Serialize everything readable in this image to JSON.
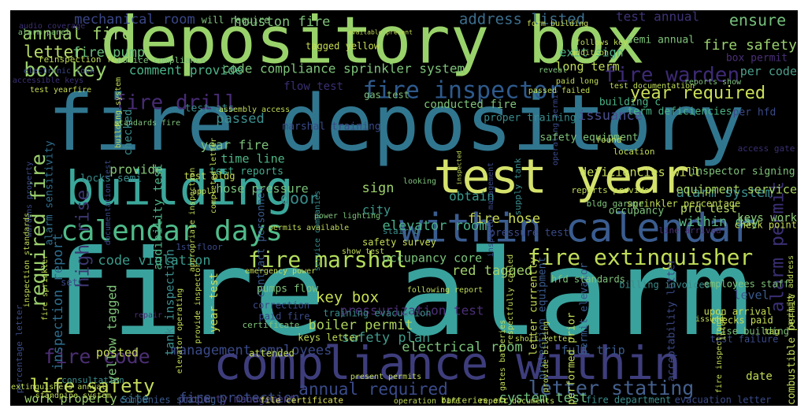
{
  "palette": {
    "background": "#000000",
    "viridis": [
      "#440154",
      "#482878",
      "#3e4a89",
      "#31688e",
      "#26828e",
      "#1f9e89",
      "#35b779",
      "#6ece58",
      "#b5de2b",
      "#fde725"
    ]
  },
  "words": [
    {
      "text": "fire alarm",
      "color": "#3aa29d"
    },
    {
      "text": "fire depository",
      "color": "#31768f"
    },
    {
      "text": "depository box",
      "color": "#99d26a"
    },
    {
      "text": "compliance within",
      "color": "#3e3d7c"
    },
    {
      "text": "building",
      "color": "#3ba79b"
    },
    {
      "text": "test year",
      "color": "#d5e26c"
    },
    {
      "text": "within calendar",
      "color": "#3a5c8f"
    },
    {
      "text": "calendar days",
      "color": "#4fbb8a"
    },
    {
      "text": "fire extinguisher",
      "color": "#c0dd58"
    },
    {
      "text": "fire inspector",
      "color": "#2e5a8d"
    },
    {
      "text": "fire marshal",
      "color": "#b3dd5a"
    },
    {
      "text": "fire warden",
      "color": "#3d2a75"
    },
    {
      "text": "year required",
      "color": "#ccdf5a"
    },
    {
      "text": "fire drill",
      "color": "#472b73"
    },
    {
      "text": "box key",
      "color": "#99d06d"
    },
    {
      "text": "annual fire",
      "color": "#9ccf6c"
    },
    {
      "text": "letter",
      "color": "#b7dc62"
    },
    {
      "text": "fire pump",
      "color": "#6ac07c"
    },
    {
      "text": "fire code",
      "color": "#4b2e73"
    },
    {
      "text": "life safety",
      "color": "#c4dc5b"
    },
    {
      "text": "annual required",
      "color": "#3a4b8a"
    },
    {
      "text": "letter stating",
      "color": "#44608d"
    },
    {
      "text": "fire safety",
      "color": "#99cf6d"
    },
    {
      "text": "alarm permit",
      "color": "#3a2f73"
    },
    {
      "text": "required fire",
      "color": "#9bd06c"
    },
    {
      "text": "high rise",
      "color": "#3b366f"
    },
    {
      "text": "ensure",
      "color": "#75c07c"
    },
    {
      "text": "address listed",
      "color": "#3b6f8e"
    },
    {
      "text": "mechanical room",
      "color": "#3a4787"
    },
    {
      "text": "houston fire",
      "color": "#7fc37a"
    },
    {
      "text": "test annual",
      "color": "#3e3378"
    },
    {
      "text": "code compliance sprinkler system",
      "color": "#7ec37a"
    },
    {
      "text": "comment provide",
      "color": "#4bb387"
    },
    {
      "text": "passed",
      "color": "#3b8f8e"
    },
    {
      "text": "issuance",
      "color": "#4a4f8d"
    },
    {
      "text": "year fire",
      "color": "#7ec07a"
    },
    {
      "text": "time line",
      "color": "#50b788"
    },
    {
      "text": "test reports",
      "color": "#44a88c"
    },
    {
      "text": "hose pressure",
      "color": "#7ac27c"
    },
    {
      "text": "door",
      "color": "#3a8c8c"
    },
    {
      "text": "sign",
      "color": "#9ed26a"
    },
    {
      "text": "provide",
      "color": "#86c777"
    },
    {
      "text": "city",
      "color": "#3d9a8b"
    },
    {
      "text": "elevator room",
      "color": "#4ab18a"
    },
    {
      "text": "fire hose",
      "color": "#ccdc52"
    },
    {
      "text": "alarm system",
      "color": "#3a8c8d"
    },
    {
      "text": "obtain",
      "color": "#3a9a8b"
    },
    {
      "text": "within day",
      "color": "#5cb984"
    },
    {
      "text": "code violation",
      "color": "#3a9a8b"
    },
    {
      "text": "inspection report",
      "color": "#2d6d8e"
    },
    {
      "text": "occupancy core",
      "color": "#7bc27c"
    },
    {
      "text": "red tagged",
      "color": "#a0d06a"
    },
    {
      "text": "key box",
      "color": "#c8de52"
    },
    {
      "text": "pressurization test",
      "color": "#4b2f78"
    },
    {
      "text": "boiler permit",
      "color": "#aed55d"
    },
    {
      "text": "safety plan",
      "color": "#3f9a8b"
    },
    {
      "text": "electrical room",
      "color": "#7bc37b"
    },
    {
      "text": "management employees",
      "color": "#3a4a88"
    },
    {
      "text": "fire protection",
      "color": "#3a4d8a"
    },
    {
      "text": "system test",
      "color": "#6ebf7e"
    },
    {
      "text": "work properly",
      "color": "#9cd06b"
    },
    {
      "text": "property management",
      "color": "#4a3f84"
    },
    {
      "text": "full trip",
      "color": "#3a5a8c"
    },
    {
      "text": "posted",
      "color": "#c8de54"
    },
    {
      "text": "level",
      "color": "#3a5a8c"
    },
    {
      "text": "keys work",
      "color": "#8cca74"
    },
    {
      "text": "equipment service",
      "color": "#a9d560"
    },
    {
      "text": "prd test",
      "color": "#b5d862"
    },
    {
      "text": "deficiencies will",
      "color": "#c7de5a"
    },
    {
      "text": "per code",
      "color": "#4c9f8b"
    },
    {
      "text": "long term",
      "color": "#c0dc56"
    },
    {
      "text": "exit sign",
      "color": "#4fb387"
    },
    {
      "text": "box permit",
      "color": "#4a2f78"
    },
    {
      "text": "semi annual",
      "color": "#7fc37a"
    },
    {
      "text": "will require",
      "color": "#7fc37a"
    },
    {
      "text": "form building",
      "color": "#ccdf5a"
    },
    {
      "text": "fire department",
      "color": "#3a8c8c"
    },
    {
      "text": "evacuation letter",
      "color": "#3a4a88"
    },
    {
      "text": "batteries etc",
      "color": "#c0dc56"
    },
    {
      "text": "file certificate",
      "color": "#e0e35a"
    },
    {
      "text": "companies stating",
      "color": "#3a5a8c"
    },
    {
      "text": "site",
      "color": "#3a7a8d"
    },
    {
      "text": "operating permit",
      "color": "#3a4a88"
    },
    {
      "text": "date",
      "color": "#c0dc56"
    },
    {
      "text": "alarm sensitivity",
      "color": "#2d6d8e"
    },
    {
      "text": "audibility test",
      "color": "#4bb387"
    },
    {
      "text": "yellow tagged",
      "color": "#7fc37a"
    },
    {
      "text": "tank inspection",
      "color": "#3a8c8c"
    },
    {
      "text": "checked",
      "color": "#3a8c8c"
    },
    {
      "text": "contract personnel",
      "color": "#3a5a8c"
    },
    {
      "text": "pumps flow",
      "color": "#7fc37a"
    },
    {
      "text": "year test",
      "color": "#c8de52"
    },
    {
      "text": "conducted fire",
      "color": "#7fc37a"
    },
    {
      "text": "proper training",
      "color": "#3a8c8c"
    },
    {
      "text": "term deficiencies",
      "color": "#4bb387"
    },
    {
      "text": "per hfd",
      "color": "#3a4a88"
    },
    {
      "text": "flow test",
      "color": "#3a2f73"
    },
    {
      "text": "gas test",
      "color": "#7fc37a"
    },
    {
      "text": "marshal training",
      "color": "#3a4a88"
    },
    {
      "text": "test ats",
      "color": "#3a8c8c"
    },
    {
      "text": "building c",
      "color": "#4bb387"
    },
    {
      "text": "safety equipment",
      "color": "#7fc37a"
    },
    {
      "text": "inspector signing",
      "color": "#7fc37a"
    },
    {
      "text": "access gate",
      "color": "#3a2f73"
    },
    {
      "text": "sprinkler percentage",
      "color": "#c0dc56"
    },
    {
      "text": "occupancy",
      "color": "#7fc37a"
    },
    {
      "text": "check point",
      "color": "#c8de52"
    },
    {
      "text": "line arrived",
      "color": "#4a2f78"
    },
    {
      "text": "pressure test",
      "color": "#3a4a88"
    },
    {
      "text": "stair b",
      "color": "#3a8c8c"
    },
    {
      "text": "safety survey",
      "color": "#c8de52"
    },
    {
      "text": "letter currently",
      "color": "#c8de52"
    },
    {
      "text": "protection equipment",
      "color": "#3a5a8c"
    },
    {
      "text": "permit elevator",
      "color": "#3a5a8c"
    },
    {
      "text": "performed prior",
      "color": "#c0dc56"
    },
    {
      "text": "acceptability letter",
      "color": "#3a4a88"
    },
    {
      "text": "combustible permit",
      "color": "#c0dc56"
    },
    {
      "text": "test failure",
      "color": "#3a4a88"
    },
    {
      "text": "checks paid",
      "color": "#c8de52"
    },
    {
      "text": "rise building",
      "color": "#7fc37a"
    },
    {
      "text": "upon arrival",
      "color": "#c8de52"
    },
    {
      "text": "employees staff",
      "color": "#7fc37a"
    },
    {
      "text": "billing invoices",
      "color": "#3a8c8c"
    },
    {
      "text": "hfd standards",
      "color": "#7fc37a"
    },
    {
      "text": "keys letter",
      "color": "#c0dc56"
    },
    {
      "text": "training evacuation",
      "color": "#3a8c8c"
    },
    {
      "text": "attended",
      "color": "#c0dc56"
    },
    {
      "text": "correction",
      "color": "#3a4a88"
    },
    {
      "text": "paid fire",
      "color": "#3a4a88"
    },
    {
      "text": "certificate",
      "color": "#7fc37a"
    },
    {
      "text": "repair",
      "color": "#4a2f78"
    },
    {
      "text": "consultation",
      "color": "#3a8c8c"
    },
    {
      "text": "set",
      "color": "#3a4a88"
    },
    {
      "text": "locks semi",
      "color": "#3a8c8c"
    },
    {
      "text": "test bldg",
      "color": "#c8de52"
    },
    {
      "text": "apply",
      "color": "#c0dc56"
    },
    {
      "text": "1st floor",
      "color": "#3a4a88"
    },
    {
      "text": "emergency power",
      "color": "#c8de52"
    },
    {
      "text": "location",
      "color": "#c0dc56"
    },
    {
      "text": "found",
      "color": "#c0dc56"
    },
    {
      "text": "reports provide",
      "color": "#c0dc56"
    },
    {
      "text": "bldg garage",
      "color": "#7fc37a"
    },
    {
      "text": "tagged yellow",
      "color": "#c8de52"
    },
    {
      "text": "reinspection fee",
      "color": "#c0dc56"
    },
    {
      "text": "alarm panel",
      "color": "#7fc37a"
    },
    {
      "text": "audio coverage",
      "color": "#3a2f73"
    },
    {
      "text": "notice compliance",
      "color": "#7fc37a"
    },
    {
      "text": "electronic lock",
      "color": "#3a4a88"
    },
    {
      "text": "accessible keys",
      "color": "#3a2f73"
    },
    {
      "text": "test yearfire",
      "color": "#c8de52"
    },
    {
      "text": "standards fire",
      "color": "#7fc37a"
    },
    {
      "text": "assembly access",
      "color": "#c0dc56"
    },
    {
      "text": "inspector management",
      "color": "#3a4a88"
    },
    {
      "text": "supply tank",
      "color": "#3a8c8c"
    },
    {
      "text": "reveal",
      "color": "#7fc37a"
    },
    {
      "text": "paid long",
      "color": "#c0dc56"
    },
    {
      "text": "passed failed",
      "color": "#c0dc56"
    },
    {
      "text": "test documentation",
      "color": "#c0dc56"
    },
    {
      "text": "reports show",
      "color": "#7fc37a"
    },
    {
      "text": "follows key",
      "color": "#c0dc56"
    },
    {
      "text": "addition",
      "color": "#c0dc56"
    },
    {
      "text": "available present",
      "color": "#c0dc56"
    },
    {
      "text": "service companies",
      "color": "#3a8c8c"
    },
    {
      "text": "power lighting",
      "color": "#7fc37a"
    },
    {
      "text": "looking",
      "color": "#7fc37a"
    },
    {
      "text": "permits available",
      "color": "#c0dc56"
    },
    {
      "text": "show test",
      "color": "#c0dc56"
    },
    {
      "text": "percentage letter",
      "color": "#3a4a88"
    },
    {
      "text": "extinguishers annual",
      "color": "#c0dc56"
    },
    {
      "text": "standpipe system",
      "color": "#c0dc56"
    },
    {
      "text": "present permits",
      "color": "#c0dc56"
    },
    {
      "text": "operation fire",
      "color": "#c0dc56"
    },
    {
      "text": "report documents",
      "color": "#c0dc56"
    },
    {
      "text": "following report",
      "color": "#c0dc56"
    },
    {
      "text": "respectfully called",
      "color": "#c0dc56"
    },
    {
      "text": "gates batteries",
      "color": "#c0dc56"
    },
    {
      "text": "provide billing",
      "color": "#c0dc56"
    },
    {
      "text": "issued",
      "color": "#c0dc56"
    },
    {
      "text": "intent",
      "color": "#c0dc56"
    },
    {
      "text": "facility address",
      "color": "#c0dc56"
    },
    {
      "text": "fire inspection",
      "color": "#c0dc56"
    },
    {
      "text": "short letter",
      "color": "#c0dc56"
    },
    {
      "text": "tag",
      "color": "#c0dc56"
    },
    {
      "text": "inspection standards",
      "color": "#c0dc56"
    },
    {
      "text": "wardens property",
      "color": "#3a4a88"
    },
    {
      "text": "inspected",
      "color": "#c0dc56"
    },
    {
      "text": "elevator operating",
      "color": "#c0dc56"
    },
    {
      "text": "provide inspector",
      "color": "#c0dc56"
    },
    {
      "text": "appropriate inspection",
      "color": "#c0dc56"
    },
    {
      "text": "documentation test",
      "color": "#3a4a88"
    },
    {
      "text": "building system",
      "color": "#c0dc56"
    },
    {
      "text": "completed letter",
      "color": "#c0dc56"
    },
    {
      "text": "fire sprinkler",
      "color": "#c0dc56"
    },
    {
      "text": "s",
      "color": "#c0dc56"
    }
  ]
}
